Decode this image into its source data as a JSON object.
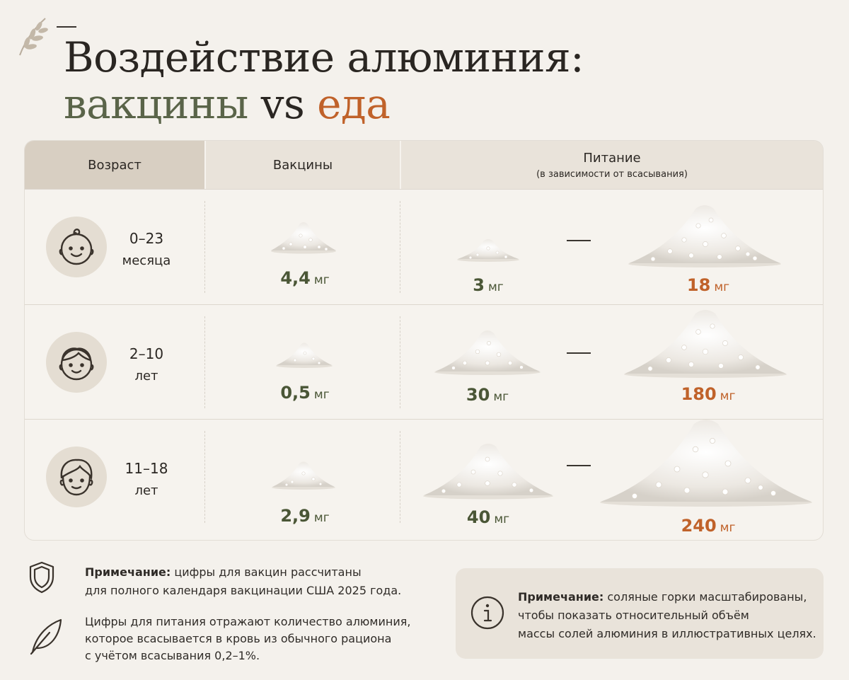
{
  "title": {
    "line1": "Воздействие алюминия:",
    "part_green": "вакцины",
    "part_vs": "vs",
    "part_orange": "еда"
  },
  "table": {
    "header": {
      "age": "Возраст",
      "vaccines": "Вакцины",
      "nutrition": "Питание",
      "nutrition_sub": "(в зависимости от всасывания)"
    },
    "unit": "мг",
    "rows": [
      {
        "age_top": "0–23",
        "age_bottom": "месяца",
        "avatar_icon": "baby-face-icon",
        "vaccine": "4,4",
        "food_low": "3",
        "food_high": "18"
      },
      {
        "age_top": "2–10",
        "age_bottom": "лет",
        "avatar_icon": "child-face-icon",
        "vaccine": "0,5",
        "food_low": "30",
        "food_high": "180"
      },
      {
        "age_top": "11–18",
        "age_bottom": "лет",
        "avatar_icon": "teen-face-icon",
        "vaccine": "2,9",
        "food_low": "40",
        "food_high": "240"
      }
    ]
  },
  "notes": {
    "left1_bold": "Примечание:",
    "left1_line1_rest": "цифры для вакцин рассчитаны",
    "left1_line2": "для полного календаря вакцинации США 2025 года.",
    "left2_line1": "Цифры для питания отражают количество алюминия,",
    "left2_line2": "которое всасывается в кровь из обычного рациона",
    "left2_line3": "с учётом всасывания 0,2–1%.",
    "box_bold": "Примечание:",
    "box_line1_rest": "соляные горки масштабированы,",
    "box_line2": "чтобы показать относительный объём",
    "box_line3": "массы солей алюминия в иллюстративных целях."
  },
  "colors": {
    "green": "#5a6449",
    "orange": "#c0622a",
    "background": "#f4f1ec"
  }
}
